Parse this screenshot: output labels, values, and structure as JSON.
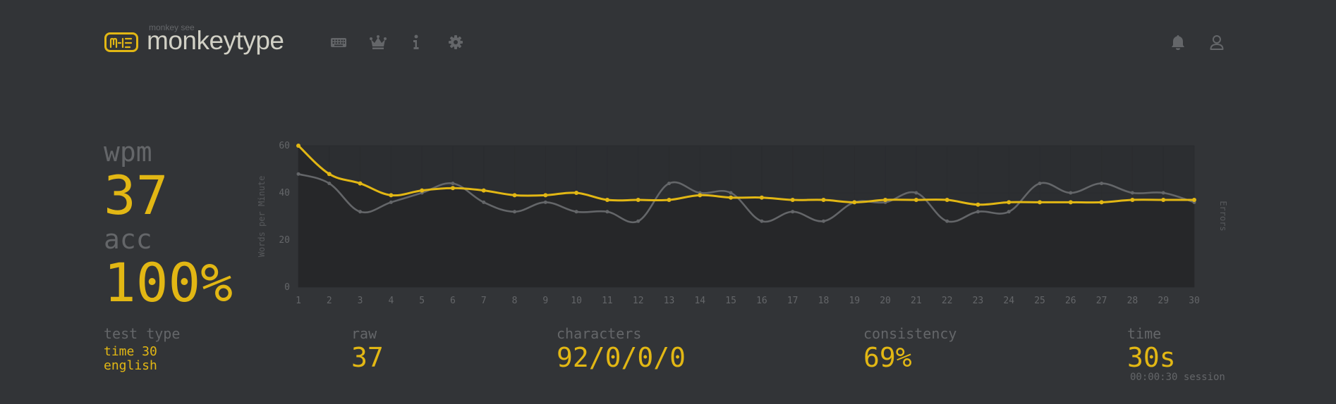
{
  "header": {
    "logo_sub": "monkey see",
    "logo_text": "monkeytype",
    "nav_icons": [
      "keyboard-icon",
      "crown-icon",
      "info-icon",
      "gear-icon"
    ],
    "right_icons": [
      "bell-icon",
      "user-icon"
    ]
  },
  "stats": {
    "wpm_label": "wpm",
    "wpm_value": "37",
    "acc_label": "acc",
    "acc_value": "100%"
  },
  "bottom": {
    "test_type_label": "test type",
    "test_type_line1": "time 30",
    "test_type_line2": "english",
    "raw_label": "raw",
    "raw_value": "37",
    "characters_label": "characters",
    "characters_value": "92/0/0/0",
    "consistency_label": "consistency",
    "consistency_value": "69%",
    "time_label": "time",
    "time_value": "30s",
    "session_text": "00:00:30 session"
  },
  "colors": {
    "background": "#323437",
    "accent": "#e2b714",
    "sub": "#646669",
    "text": "#d1d0c5"
  },
  "chart_data": {
    "type": "line",
    "x": [
      1,
      2,
      3,
      4,
      5,
      6,
      7,
      8,
      9,
      10,
      11,
      12,
      13,
      14,
      15,
      16,
      17,
      18,
      19,
      20,
      21,
      22,
      23,
      24,
      25,
      26,
      27,
      28,
      29,
      30
    ],
    "series": [
      {
        "name": "",
        "color": "#e2b714",
        "values": [
          60,
          48,
          44,
          39,
          41,
          42,
          41,
          39,
          39,
          40,
          37,
          37,
          37,
          39,
          38,
          38,
          37,
          37,
          36,
          37,
          37,
          37,
          35,
          36,
          36,
          36,
          36,
          37,
          37,
          37
        ]
      },
      {
        "name": "",
        "color": "#646669",
        "values": [
          48,
          44,
          32,
          36,
          40,
          44,
          36,
          32,
          36,
          32,
          32,
          28,
          44,
          40,
          40,
          28,
          32,
          28,
          36,
          36,
          40,
          28,
          32,
          32,
          44,
          40,
          44,
          40,
          40,
          36
        ]
      }
    ],
    "ylabel": "Words per Minute",
    "y2label": "Errors",
    "ylim": [
      0,
      60
    ],
    "yticks": [
      0,
      20,
      40,
      60
    ],
    "grid": true
  }
}
